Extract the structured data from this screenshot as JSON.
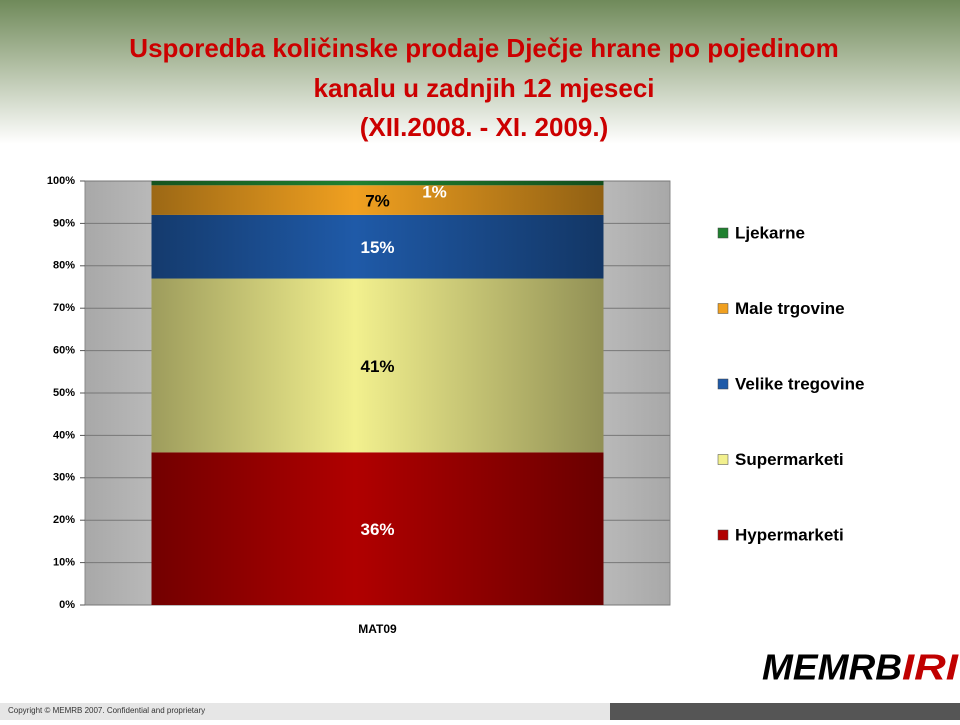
{
  "chart_data": {
    "type": "stacked_bar",
    "title": [
      "Usporedba količinske prodaje Dječje hrane po pojedinom",
      "kanalu u zadnjih 12 mjeseci",
      "(XII.2008. -  XI. 2009.)"
    ],
    "categories": [
      "MAT09"
    ],
    "series": [
      {
        "name": "Hypermarketi",
        "color": "#b00000",
        "label_color": "#ffffff",
        "values": [
          36
        ],
        "value_labels": [
          "36%"
        ]
      },
      {
        "name": "Supermarketi",
        "color": "#f2f08e",
        "label_color": "#000000",
        "values": [
          41
        ],
        "value_labels": [
          "41%"
        ]
      },
      {
        "name": "Velike tregovine",
        "color": "#1f5aa8",
        "label_color": "#ffffff",
        "values": [
          15
        ],
        "value_labels": [
          "15%"
        ]
      },
      {
        "name": "Male trgovine",
        "color": "#f0a020",
        "label_color": "#000000",
        "values": [
          7
        ],
        "value_labels": [
          "7%"
        ]
      },
      {
        "name": "Ljekarne",
        "color": "#208030",
        "label_color": "#ffffff",
        "values": [
          1
        ],
        "value_labels": [
          "1%"
        ]
      }
    ],
    "ylim": [
      0,
      100
    ],
    "yticks": [
      {
        "value": 0,
        "label": "0%"
      },
      {
        "value": 10,
        "label": "10%"
      },
      {
        "value": 20,
        "label": "20%"
      },
      {
        "value": 30,
        "label": "30%"
      },
      {
        "value": 40,
        "label": "40%"
      },
      {
        "value": 50,
        "label": "50%"
      },
      {
        "value": 60,
        "label": "60%"
      },
      {
        "value": 70,
        "label": "70%"
      },
      {
        "value": 80,
        "label": "80%"
      },
      {
        "value": 90,
        "label": "90%"
      },
      {
        "value": 100,
        "label": "100%"
      }
    ],
    "grid": true,
    "legend": "right"
  },
  "footer": "Copyright © MEMRB 2007. Confidential and proprietary",
  "logo": [
    "MEMRB",
    "IRI"
  ]
}
